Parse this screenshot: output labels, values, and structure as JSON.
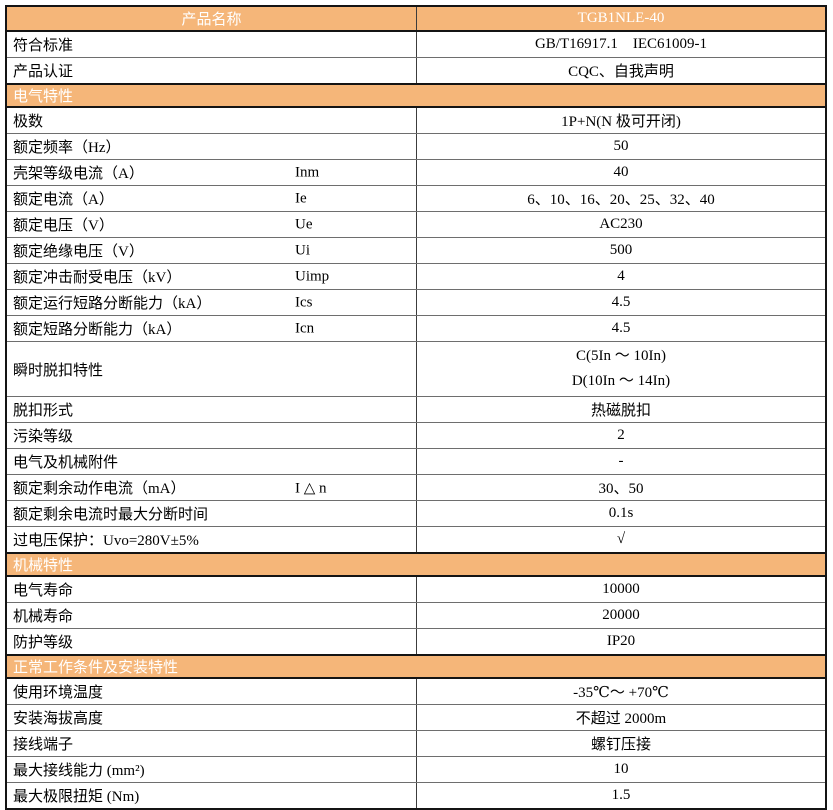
{
  "colors": {
    "accent_orange": "#F5B679",
    "header_text": "#FFFFFF",
    "body_text": "#000000",
    "outer_border": "#141414",
    "inner_border": "#6E6E6E"
  },
  "header": {
    "product_label": "产品名称",
    "product_value": "TGB1NLE-40"
  },
  "rows": [
    {
      "type": "kv",
      "label": "符合标准",
      "value": "GB/T16917.1    IEC61009-1"
    },
    {
      "type": "kv",
      "label": "产品认证",
      "value": "CQC、自我声明"
    },
    {
      "type": "section",
      "label": "电气特性"
    },
    {
      "type": "kv",
      "label": "极数",
      "value": "1P+N(N 极可开闭)"
    },
    {
      "type": "kv",
      "label": "额定频率（Hz）",
      "value": "50"
    },
    {
      "type": "kv",
      "label": "壳架等级电流（A）",
      "symbol": "Inm",
      "value": "40"
    },
    {
      "type": "kv",
      "label": "额定电流（A）",
      "symbol": "Ie",
      "value": "6、10、16、20、25、32、40"
    },
    {
      "type": "kv",
      "label": "额定电压（V）",
      "symbol": "Ue",
      "value": "AC230"
    },
    {
      "type": "kv",
      "label": "额定绝缘电压（V）",
      "symbol": "Ui",
      "value": "500"
    },
    {
      "type": "kv",
      "label": "额定冲击耐受电压（kV）",
      "symbol": "Uimp",
      "value": "4"
    },
    {
      "type": "kv",
      "label": "额定运行短路分断能力（kA）",
      "symbol": "Ics",
      "value": "4.5"
    },
    {
      "type": "kv",
      "label": "额定短路分断能力（kA）",
      "symbol": "Icn",
      "value": "4.5"
    },
    {
      "type": "multi",
      "label": "瞬时脱扣特性",
      "values": [
        "C(5In ～ 10In)",
        "D(10In ～ 14In)"
      ]
    },
    {
      "type": "kv",
      "label": "脱扣形式",
      "value": "热磁脱扣"
    },
    {
      "type": "kv",
      "label": "污染等级",
      "value": "2"
    },
    {
      "type": "kv",
      "label": "电气及机械附件",
      "value": "-"
    },
    {
      "type": "kv",
      "label": "额定剩余动作电流（mA）",
      "symbol": "I △ n",
      "value": "30、50"
    },
    {
      "type": "kv",
      "label": "额定剩余电流时最大分断时间",
      "value": "0.1s"
    },
    {
      "type": "kv",
      "label": "过电压保护：Uvo=280V±5%",
      "value": "√"
    },
    {
      "type": "section",
      "label": "机械特性"
    },
    {
      "type": "kv",
      "label": "电气寿命",
      "value": "10000"
    },
    {
      "type": "kv",
      "label": "机械寿命",
      "value": "20000"
    },
    {
      "type": "kv",
      "label": "防护等级",
      "value": "IP20"
    },
    {
      "type": "section",
      "label": "正常工作条件及安装特性"
    },
    {
      "type": "kv",
      "label": "使用环境温度",
      "value": "-35℃～ +70℃"
    },
    {
      "type": "kv",
      "label": "安装海拔高度",
      "value": "不超过 2000m"
    },
    {
      "type": "kv",
      "label": "接线端子",
      "value": "螺钉压接"
    },
    {
      "type": "kv",
      "label": "最大接线能力 (mm²)",
      "value": "10"
    },
    {
      "type": "kv",
      "label": "最大极限扭矩 (Nm)",
      "value": "1.5"
    }
  ]
}
